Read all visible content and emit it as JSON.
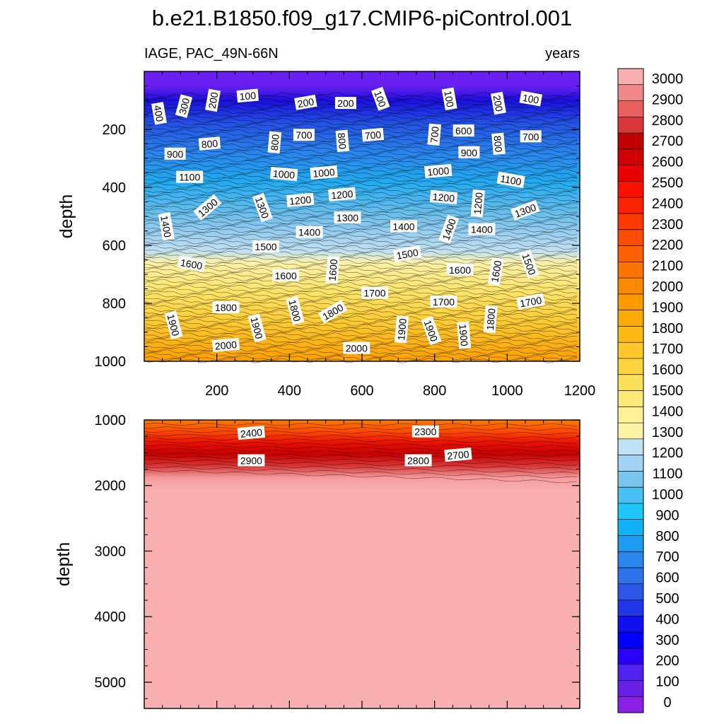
{
  "chart_data": {
    "type": "contour",
    "title": "b.e21.B1850.f09_g17.CMIP6-piControl.001",
    "left_subtitle": "IAGE, PAC_49N-66N",
    "right_subtitle": "years",
    "ylabel": "depth",
    "x_ticks": [
      200,
      400,
      600,
      800,
      1000,
      1200
    ],
    "xlim": [
      0,
      1200
    ],
    "panels": [
      {
        "name": "upper",
        "ylim": [
          1000,
          0
        ],
        "y_ticks": [
          200,
          400,
          600,
          800,
          1000
        ],
        "contour_labels": [
          {
            "t": "400",
            "x": 40,
            "y": 145,
            "r": 80
          },
          {
            "t": "300",
            "x": 110,
            "y": 120,
            "r": -75
          },
          {
            "t": "200",
            "x": 190,
            "y": 100,
            "r": -80
          },
          {
            "t": "100",
            "x": 285,
            "y": 85,
            "r": -5
          },
          {
            "t": "200",
            "x": 445,
            "y": 108,
            "r": -10
          },
          {
            "t": "200",
            "x": 555,
            "y": 110,
            "r": 0
          },
          {
            "t": "100",
            "x": 650,
            "y": 95,
            "r": 70
          },
          {
            "t": "100",
            "x": 840,
            "y": 95,
            "r": 80
          },
          {
            "t": "200",
            "x": 975,
            "y": 110,
            "r": 80
          },
          {
            "t": "100",
            "x": 1065,
            "y": 95,
            "r": 10
          },
          {
            "t": "800",
            "x": 180,
            "y": 250,
            "r": -5
          },
          {
            "t": "900",
            "x": 85,
            "y": 285,
            "r": 0
          },
          {
            "t": "800",
            "x": 360,
            "y": 245,
            "r": -85
          },
          {
            "t": "700",
            "x": 440,
            "y": 220,
            "r": 0
          },
          {
            "t": "800",
            "x": 545,
            "y": 240,
            "r": 85
          },
          {
            "t": "700",
            "x": 630,
            "y": 220,
            "r": -5
          },
          {
            "t": "700",
            "x": 800,
            "y": 218,
            "r": -85
          },
          {
            "t": "600",
            "x": 880,
            "y": 205,
            "r": 0
          },
          {
            "t": "900",
            "x": 895,
            "y": 280,
            "r": 0
          },
          {
            "t": "800",
            "x": 975,
            "y": 250,
            "r": 85
          },
          {
            "t": "700",
            "x": 1065,
            "y": 225,
            "r": 0
          },
          {
            "t": "1100",
            "x": 125,
            "y": 365,
            "r": 0
          },
          {
            "t": "1000",
            "x": 385,
            "y": 355,
            "r": 5
          },
          {
            "t": "1000",
            "x": 495,
            "y": 350,
            "r": -5
          },
          {
            "t": "1000",
            "x": 810,
            "y": 345,
            "r": -5
          },
          {
            "t": "1100",
            "x": 1010,
            "y": 375,
            "r": 10
          },
          {
            "t": "1300",
            "x": 175,
            "y": 470,
            "r": -40
          },
          {
            "t": "1300",
            "x": 325,
            "y": 470,
            "r": 70
          },
          {
            "t": "1200",
            "x": 430,
            "y": 445,
            "r": -5
          },
          {
            "t": "1200",
            "x": 545,
            "y": 425,
            "r": -5
          },
          {
            "t": "1200",
            "x": 825,
            "y": 435,
            "r": 5
          },
          {
            "t": "1200",
            "x": 920,
            "y": 455,
            "r": -85
          },
          {
            "t": "1300",
            "x": 1050,
            "y": 480,
            "r": -20
          },
          {
            "t": "1400",
            "x": 60,
            "y": 535,
            "r": 80
          },
          {
            "t": "1300",
            "x": 560,
            "y": 505,
            "r": 0
          },
          {
            "t": "1400",
            "x": 455,
            "y": 555,
            "r": 0
          },
          {
            "t": "1400",
            "x": 715,
            "y": 535,
            "r": 0
          },
          {
            "t": "1400",
            "x": 840,
            "y": 545,
            "r": -70
          },
          {
            "t": "1400",
            "x": 930,
            "y": 545,
            "r": 0
          },
          {
            "t": "1500",
            "x": 335,
            "y": 605,
            "r": 0
          },
          {
            "t": "1500",
            "x": 725,
            "y": 630,
            "r": -10
          },
          {
            "t": "1500",
            "x": 1060,
            "y": 665,
            "r": 70
          },
          {
            "t": "1600",
            "x": 130,
            "y": 665,
            "r": 10
          },
          {
            "t": "1600",
            "x": 390,
            "y": 705,
            "r": 0
          },
          {
            "t": "1600",
            "x": 520,
            "y": 685,
            "r": -85
          },
          {
            "t": "1600",
            "x": 870,
            "y": 685,
            "r": 0
          },
          {
            "t": "1600",
            "x": 970,
            "y": 690,
            "r": -80
          },
          {
            "t": "1700",
            "x": 635,
            "y": 765,
            "r": 0
          },
          {
            "t": "1700",
            "x": 825,
            "y": 795,
            "r": 0
          },
          {
            "t": "1700",
            "x": 1065,
            "y": 795,
            "r": -10
          },
          {
            "t": "1800",
            "x": 225,
            "y": 815,
            "r": 0
          },
          {
            "t": "1800",
            "x": 415,
            "y": 825,
            "r": 75
          },
          {
            "t": "1800",
            "x": 520,
            "y": 830,
            "r": -30
          },
          {
            "t": "1800",
            "x": 955,
            "y": 855,
            "r": -85
          },
          {
            "t": "1900",
            "x": 80,
            "y": 875,
            "r": 75
          },
          {
            "t": "1900",
            "x": 310,
            "y": 885,
            "r": 75
          },
          {
            "t": "1900",
            "x": 710,
            "y": 890,
            "r": -85
          },
          {
            "t": "1900",
            "x": 790,
            "y": 895,
            "r": 70
          },
          {
            "t": "1900",
            "x": 880,
            "y": 910,
            "r": 85
          },
          {
            "t": "2000",
            "x": 225,
            "y": 945,
            "r": -5
          },
          {
            "t": "2000",
            "x": 585,
            "y": 955,
            "r": 0
          }
        ]
      },
      {
        "name": "lower",
        "ylim": [
          5400,
          1000
        ],
        "y_ticks": [
          1000,
          2000,
          3000,
          4000,
          5000
        ],
        "contour_labels": [
          {
            "t": "2400",
            "x": 295,
            "y": 1200,
            "r": -5
          },
          {
            "t": "2300",
            "x": 775,
            "y": 1180,
            "r": 0
          },
          {
            "t": "2900",
            "x": 295,
            "y": 1620,
            "r": 0
          },
          {
            "t": "2800",
            "x": 755,
            "y": 1620,
            "r": 0
          },
          {
            "t": "2700",
            "x": 865,
            "y": 1535,
            "r": -5
          }
        ]
      }
    ],
    "colorbar": {
      "labels": [
        "0",
        "100",
        "200",
        "300",
        "400",
        "500",
        "600",
        "700",
        "800",
        "900",
        "1000",
        "1100",
        "1200",
        "1300",
        "1400",
        "1500",
        "1600",
        "1700",
        "1800",
        "1900",
        "2000",
        "2100",
        "2200",
        "2300",
        "2400",
        "2500",
        "2600",
        "2700",
        "2800",
        "2900",
        "3000"
      ],
      "colors": [
        "#8a1fe6",
        "#6a1fe8",
        "#5022f0",
        "#2a00f8",
        "#0000fa",
        "#1010f0",
        "#2036e8",
        "#2e56e6",
        "#2f72ea",
        "#2a86ee",
        "#1e9cf2",
        "#12b2f6",
        "#1ec6fa",
        "#48c0f4",
        "#78c4ee",
        "#a0d4f2",
        "#bfe2f4",
        "#fdf3a6",
        "#fff296",
        "#ffe978",
        "#fde05a",
        "#fcd23e",
        "#fcc82c",
        "#fdb916",
        "#fcaa08",
        "#fc9800",
        "#fb8a00",
        "#fb7400",
        "#fc6000",
        "#fc4c00",
        "#fc3a00",
        "#fc2400",
        "#fa1000",
        "#e80000",
        "#d00000",
        "#c00000",
        "#d83838",
        "#e86060",
        "#f08888",
        "#fab0b0"
      ]
    }
  }
}
